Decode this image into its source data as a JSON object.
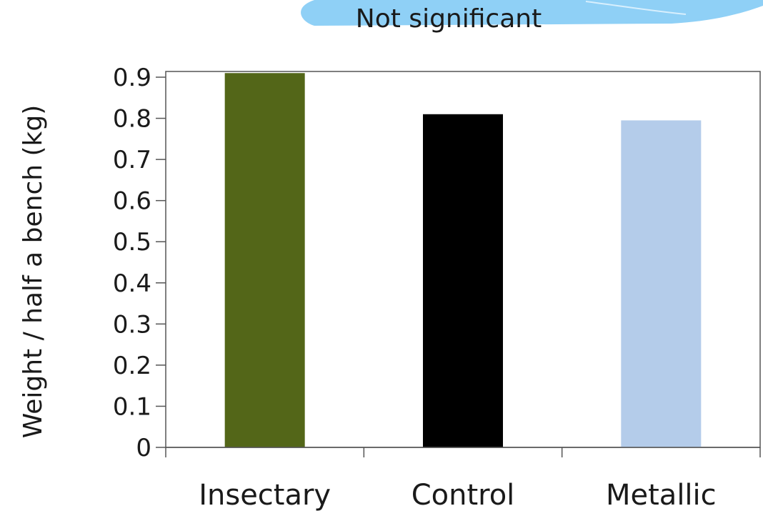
{
  "chart_data": {
    "type": "bar",
    "title": "Not significant",
    "xlabel": "",
    "ylabel": "Weight / half a bench (kg)",
    "categories": [
      "Insectary",
      "Control",
      "Metallic"
    ],
    "values": [
      0.91,
      0.81,
      0.795
    ],
    "colors": [
      "#536618",
      "#000000",
      "#b4ccea"
    ],
    "ylim": [
      0,
      0.9
    ],
    "yticks": [
      "0",
      "0.1",
      "0.2",
      "0.3",
      "0.4",
      "0.5",
      "0.6",
      "0.7",
      "0.8",
      "0.9"
    ],
    "grid": false,
    "legend": "none"
  },
  "theme": {
    "banner_color": "#8fd0f6",
    "banner_highlight": "#d8effd"
  }
}
